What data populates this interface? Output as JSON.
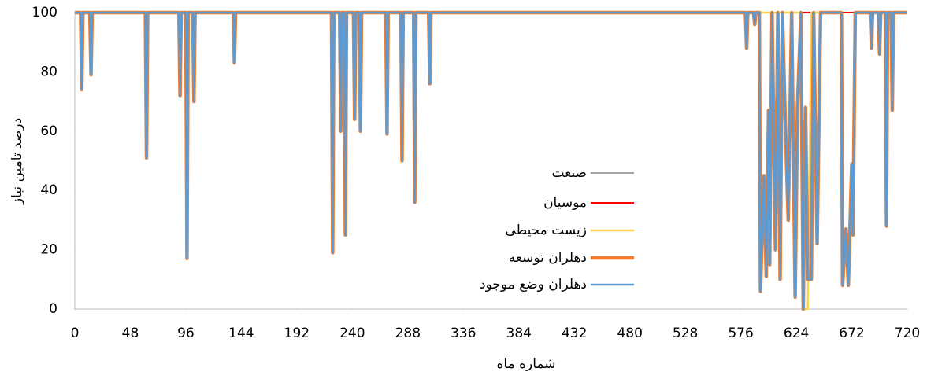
{
  "chart_data": {
    "type": "line",
    "x_label": "شماره ماه",
    "y_label": "درصد تامین نیاز",
    "x": [
      0,
      5,
      6,
      7,
      13,
      14,
      15,
      61,
      62,
      63,
      90,
      91,
      92,
      96,
      97,
      98,
      102,
      103,
      104,
      137,
      138,
      139,
      222,
      223,
      224,
      229,
      230,
      231,
      233,
      234,
      235,
      241,
      242,
      243,
      246,
      247,
      248,
      269,
      270,
      271,
      282,
      283,
      284,
      293,
      294,
      295,
      306,
      307,
      308,
      580,
      581,
      582,
      587,
      588,
      589,
      592,
      593,
      596,
      598,
      600,
      601,
      603,
      606,
      608,
      610,
      612,
      614,
      617,
      620,
      623,
      625,
      628,
      630,
      632,
      634,
      637,
      639,
      642,
      645,
      663,
      664,
      667,
      669,
      672,
      673,
      675,
      688,
      689,
      690,
      695,
      696,
      697,
      701,
      702,
      703,
      706,
      707,
      708,
      720
    ],
    "series": [
      {
        "name": "صنعت",
        "color": "#a5a5a5",
        "width": 2,
        "values": [
          100,
          100,
          100,
          100,
          100,
          100,
          100,
          100,
          100,
          100,
          100,
          100,
          100,
          100,
          100,
          100,
          100,
          100,
          100,
          100,
          100,
          100,
          100,
          100,
          100,
          100,
          100,
          100,
          100,
          100,
          100,
          100,
          100,
          100,
          100,
          100,
          100,
          100,
          100,
          100,
          100,
          100,
          100,
          100,
          100,
          100,
          100,
          100,
          100,
          100,
          100,
          100,
          100,
          100,
          100,
          100,
          100,
          100,
          100,
          100,
          100,
          100,
          100,
          100,
          100,
          100,
          100,
          100,
          100,
          100,
          100,
          100,
          100,
          100,
          100,
          100,
          100,
          100,
          100,
          100,
          100,
          100,
          100,
          100,
          100,
          100,
          100,
          100,
          100,
          100,
          100,
          100,
          100,
          100,
          100,
          100,
          100,
          100,
          100
        ]
      },
      {
        "name": "موسیان",
        "color": "#ff0000",
        "width": 2,
        "values": [
          100,
          100,
          100,
          100,
          100,
          100,
          100,
          100,
          100,
          100,
          100,
          100,
          100,
          100,
          100,
          100,
          100,
          100,
          100,
          100,
          100,
          100,
          100,
          100,
          100,
          100,
          100,
          100,
          100,
          100,
          100,
          100,
          100,
          100,
          100,
          100,
          100,
          100,
          100,
          100,
          100,
          100,
          100,
          100,
          100,
          100,
          100,
          100,
          100,
          100,
          100,
          100,
          100,
          100,
          100,
          100,
          100,
          100,
          100,
          100,
          100,
          100,
          100,
          100,
          100,
          100,
          100,
          100,
          100,
          100,
          100,
          100,
          100,
          100,
          100,
          100,
          100,
          100,
          100,
          100,
          100,
          100,
          100,
          100,
          100,
          100,
          100,
          100,
          100,
          100,
          100,
          100,
          100,
          100,
          100,
          100,
          100,
          100,
          100
        ]
      },
      {
        "name": "زیست محیطی",
        "color": "#ffd34d",
        "width": 2.5,
        "values": [
          100,
          100,
          74,
          100,
          100,
          79,
          100,
          100,
          51,
          100,
          100,
          72,
          100,
          100,
          17,
          100,
          100,
          70,
          100,
          100,
          83,
          100,
          100,
          19,
          100,
          100,
          60,
          100,
          100,
          25,
          100,
          100,
          64,
          100,
          100,
          60,
          100,
          100,
          59,
          100,
          100,
          50,
          100,
          100,
          36,
          100,
          100,
          76,
          100,
          100,
          88,
          100,
          100,
          96,
          100,
          100,
          100,
          100,
          100,
          100,
          100,
          100,
          100,
          100,
          100,
          100,
          100,
          100,
          100,
          100,
          100,
          100,
          0,
          0,
          0,
          100,
          100,
          100,
          100,
          100,
          8,
          27,
          8,
          49,
          25,
          100,
          100,
          88,
          100,
          100,
          86,
          100,
          100,
          28,
          100,
          100,
          67,
          100,
          100
        ]
      },
      {
        "name": "دهلران توسعه",
        "color": "#ed7d31",
        "width": 4.5,
        "values": [
          100,
          100,
          74,
          100,
          100,
          79,
          100,
          100,
          51,
          100,
          100,
          72,
          100,
          100,
          17,
          100,
          100,
          70,
          100,
          100,
          83,
          100,
          100,
          19,
          100,
          100,
          60,
          100,
          100,
          25,
          100,
          100,
          64,
          100,
          100,
          60,
          100,
          100,
          59,
          100,
          100,
          50,
          100,
          100,
          36,
          100,
          100,
          76,
          100,
          100,
          88,
          100,
          100,
          96,
          100,
          100,
          6,
          45,
          11,
          67,
          15,
          100,
          20,
          100,
          10,
          100,
          70,
          30,
          100,
          4,
          68,
          100,
          0,
          68,
          10,
          10,
          100,
          22,
          100,
          100,
          8,
          27,
          8,
          49,
          25,
          100,
          100,
          88,
          100,
          100,
          86,
          100,
          100,
          28,
          100,
          100,
          67,
          100,
          100
        ]
      },
      {
        "name": "دهلران وضع موجود",
        "color": "#5b9bd5",
        "width": 2.5,
        "values": [
          100,
          100,
          74,
          100,
          100,
          79,
          100,
          100,
          51,
          100,
          100,
          72,
          100,
          100,
          17,
          100,
          100,
          70,
          100,
          100,
          83,
          100,
          100,
          19,
          100,
          100,
          60,
          100,
          100,
          25,
          100,
          100,
          64,
          100,
          100,
          60,
          100,
          100,
          59,
          100,
          100,
          50,
          100,
          100,
          36,
          100,
          100,
          76,
          100,
          100,
          88,
          100,
          100,
          96,
          100,
          100,
          6,
          45,
          11,
          67,
          15,
          100,
          20,
          100,
          10,
          100,
          70,
          30,
          100,
          4,
          68,
          100,
          0,
          68,
          10,
          10,
          100,
          22,
          100,
          100,
          8,
          27,
          8,
          49,
          25,
          100,
          100,
          88,
          100,
          100,
          86,
          100,
          100,
          28,
          100,
          100,
          67,
          100,
          100
        ]
      }
    ],
    "xlim": [
      0,
      720
    ],
    "xticks": [
      0,
      48,
      96,
      144,
      192,
      240,
      288,
      336,
      384,
      432,
      480,
      528,
      576,
      624,
      672,
      720
    ],
    "ylim": [
      0,
      100
    ],
    "yticks": [
      0,
      20,
      40,
      60,
      80,
      100
    ],
    "grid": false
  }
}
